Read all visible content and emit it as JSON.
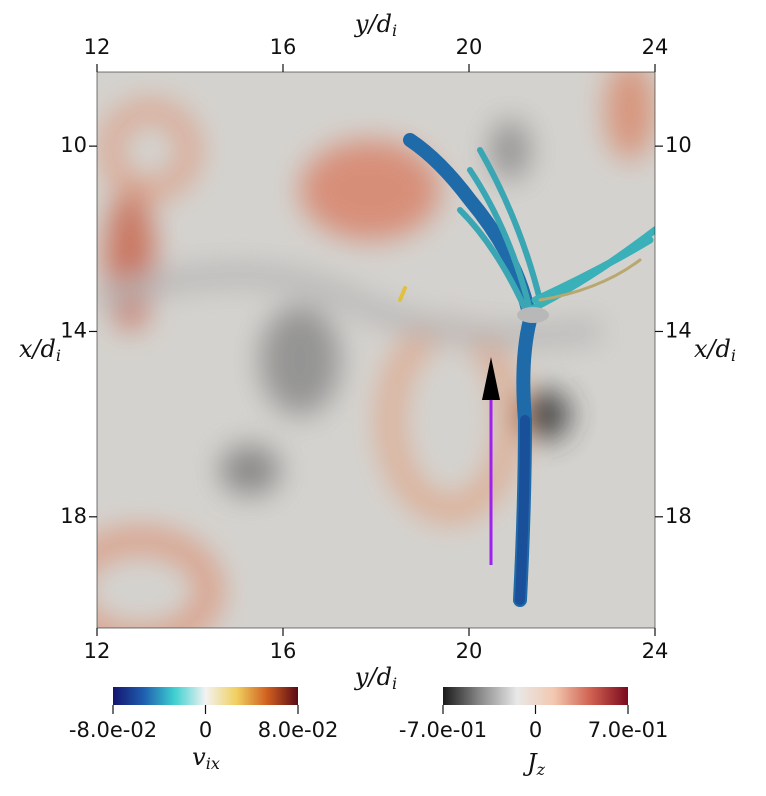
{
  "chart_data": {
    "type": "field",
    "xlabel": {
      "base": "y/d",
      "sub": "i"
    },
    "ylabel": {
      "base": "x/d",
      "sub": "i"
    },
    "xlim": [
      12,
      24
    ],
    "xticks": [
      12,
      16,
      20,
      24
    ],
    "ylim": [
      8.4,
      20.4
    ],
    "yticks": [
      10,
      14,
      18
    ],
    "colorbars": [
      {
        "label": {
          "base": "v",
          "sub": "ix"
        },
        "lim": [
          -0.08,
          0.08
        ],
        "ticks": [
          {
            "value": -0.08,
            "label": "-8.0e-02"
          },
          0,
          {
            "value": 0.08,
            "label": "8.0e-02"
          }
        ],
        "colors": [
          "#14146e",
          "#1f5fb0",
          "#3fd0d0",
          "#f2f2f2",
          "#f0d060",
          "#d06020",
          "#5a0a14"
        ]
      },
      {
        "label": {
          "base": "J",
          "sub": "z"
        },
        "lim": [
          -0.7,
          0.7
        ],
        "ticks": [
          {
            "value": -0.7,
            "label": "-7.0e-01"
          },
          0,
          {
            "value": 0.7,
            "label": "7.0e-01"
          }
        ],
        "colors": [
          "#1a1a1a",
          "#8a8a8a",
          "#e8e8e8",
          "#f2c8b0",
          "#d06050",
          "#7a0a1e"
        ]
      }
    ]
  }
}
